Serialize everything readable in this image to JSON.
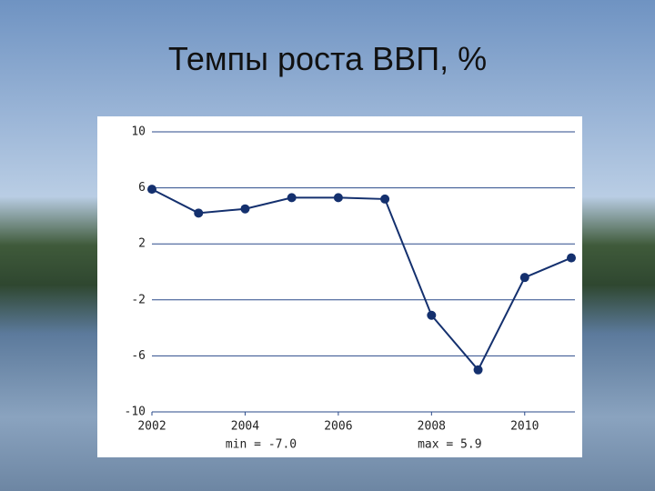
{
  "chart_data": {
    "type": "line",
    "title": "Темпы роста ВВП, %",
    "x": [
      2002,
      2003,
      2004,
      2005,
      2006,
      2007,
      2008,
      2009,
      2010,
      2011
    ],
    "series": [
      {
        "name": "ВВП",
        "color": "#14306e",
        "values": [
          5.9,
          4.2,
          4.5,
          5.3,
          5.3,
          5.2,
          -3.1,
          -7.0,
          -0.4,
          1.0
        ]
      }
    ],
    "xlim": [
      2002,
      2011
    ],
    "xticks": [
      2002,
      2004,
      2006,
      2008,
      2010
    ],
    "ylim": [
      -10,
      10
    ],
    "yticks": [
      10,
      6,
      2,
      -2,
      -6,
      -10
    ],
    "grid": true,
    "annotations": [
      "min = -7.0",
      "max = 5.9"
    ]
  }
}
